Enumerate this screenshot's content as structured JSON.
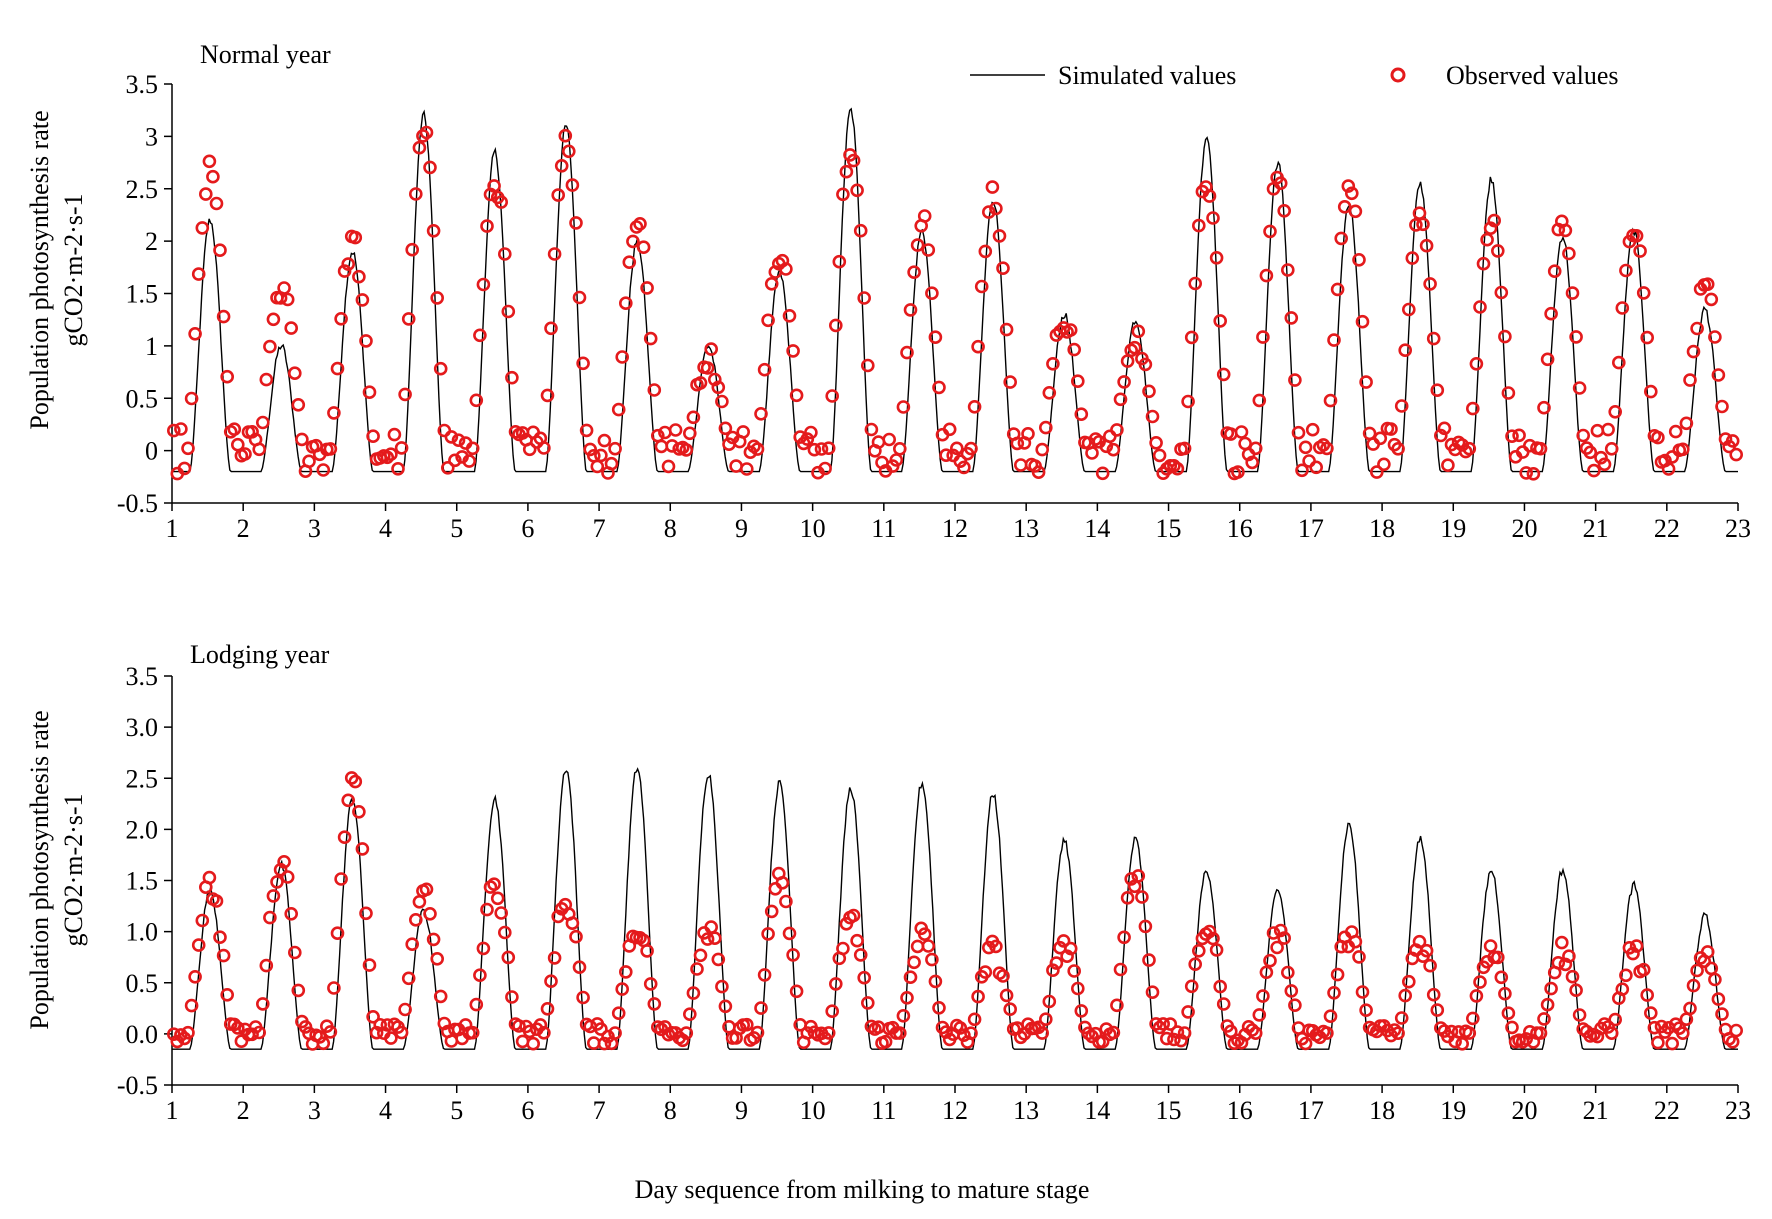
{
  "figure": {
    "xlabel": "Day sequence from milking to mature stage",
    "legend": {
      "simulated": "Simulated values",
      "observed": "Observed values"
    },
    "colors": {
      "simulated": "#000000",
      "observed": "#e41a1c",
      "axis": "#000000"
    }
  },
  "chart_data": [
    {
      "type": "line",
      "title": "Normal year",
      "ylabel_line1": "Population photosynthesis rate",
      "ylabel_units": "gCO2·m-2·s-1",
      "xlim": [
        1,
        23
      ],
      "ylim": [
        -0.5,
        3.5
      ],
      "xticks": [
        "1",
        "2",
        "3",
        "4",
        "5",
        "6",
        "7",
        "8",
        "9",
        "10",
        "11",
        "12",
        "13",
        "14",
        "15",
        "16",
        "17",
        "18",
        "19",
        "20",
        "21",
        "22",
        "23"
      ],
      "yticks": [
        "-0.5",
        "0",
        "0.5",
        "1",
        "1.5",
        "2",
        "2.5",
        "3",
        "3.5"
      ],
      "series": [
        {
          "name": "Simulated values",
          "kind": "diurnal_peaks",
          "peak_values": [
            2.2,
            1.0,
            1.9,
            3.2,
            2.85,
            3.1,
            2.0,
            1.0,
            1.7,
            3.25,
            2.1,
            2.4,
            1.3,
            1.25,
            3.0,
            2.75,
            2.35,
            2.55,
            2.6,
            2.05,
            2.1,
            1.35
          ],
          "night_value": -0.2
        },
        {
          "name": "Observed values",
          "kind": "diurnal_peaks",
          "peak_values": [
            2.65,
            1.55,
            2.0,
            3.0,
            2.6,
            3.0,
            2.2,
            0.9,
            1.9,
            2.95,
            2.2,
            2.4,
            1.25,
            1.1,
            2.6,
            2.55,
            2.5,
            2.25,
            2.15,
            2.15,
            2.1,
            1.55
          ],
          "night_value": 0.0
        }
      ]
    },
    {
      "type": "line",
      "title": "Lodging year",
      "ylabel_line1": "Population photosynthesis rate",
      "ylabel_units": "gCO2·m-2·s-1",
      "xlim": [
        1,
        23
      ],
      "ylim": [
        -0.5,
        3.5
      ],
      "xticks": [
        "1",
        "2",
        "3",
        "4",
        "5",
        "6",
        "7",
        "8",
        "9",
        "10",
        "11",
        "12",
        "13",
        "14",
        "15",
        "16",
        "17",
        "18",
        "19",
        "20",
        "21",
        "22",
        "23"
      ],
      "yticks": [
        "-0.5",
        "0.0",
        "0.5",
        "1.0",
        "1.5",
        "2.0",
        "2.5",
        "3.0",
        "3.5"
      ],
      "series": [
        {
          "name": "Simulated values",
          "kind": "diurnal_peaks",
          "peak_values": [
            1.4,
            1.65,
            2.3,
            1.2,
            2.3,
            2.6,
            2.6,
            2.55,
            2.45,
            2.4,
            2.45,
            2.35,
            1.9,
            1.9,
            1.6,
            1.4,
            2.05,
            1.9,
            1.6,
            1.6,
            1.45,
            1.15
          ],
          "night_value": -0.15
        },
        {
          "name": "Observed values",
          "kind": "diurnal_peaks",
          "peak_values": [
            1.45,
            1.7,
            2.45,
            1.4,
            1.45,
            1.3,
            1.05,
            1.05,
            1.45,
            1.1,
            0.95,
            0.8,
            0.9,
            1.55,
            1.05,
            0.95,
            0.95,
            0.85,
            0.85,
            0.8,
            0.8,
            0.7
          ],
          "night_value": 0.0
        }
      ]
    }
  ]
}
